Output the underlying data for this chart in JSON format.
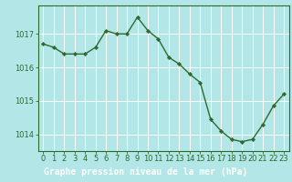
{
  "x": [
    0,
    1,
    2,
    3,
    4,
    5,
    6,
    7,
    8,
    9,
    10,
    11,
    12,
    13,
    14,
    15,
    16,
    17,
    18,
    19,
    20,
    21,
    22,
    23
  ],
  "y": [
    1016.7,
    1016.6,
    1016.4,
    1016.4,
    1016.4,
    1016.6,
    1017.1,
    1017.0,
    1017.0,
    1017.5,
    1017.1,
    1016.85,
    1016.3,
    1016.1,
    1015.8,
    1015.55,
    1014.45,
    1014.1,
    1013.85,
    1013.78,
    1013.85,
    1014.3,
    1014.85,
    1015.2
  ],
  "line_color": "#2d6a2d",
  "marker_color": "#2d6a2d",
  "bg_color": "#b3e6e6",
  "grid_color": "#ffffff",
  "bottom_bar_color": "#2d6a2d",
  "bottom_text_color": "#ffffff",
  "xlabel": "Graphe pression niveau de la mer (hPa)",
  "xlim": [
    -0.5,
    23.5
  ],
  "ylim": [
    1013.5,
    1017.85
  ],
  "yticks": [
    1014,
    1015,
    1016,
    1017
  ],
  "xticks": [
    0,
    1,
    2,
    3,
    4,
    5,
    6,
    7,
    8,
    9,
    10,
    11,
    12,
    13,
    14,
    15,
    16,
    17,
    18,
    19,
    20,
    21,
    22,
    23
  ],
  "label_fontsize": 7.0,
  "tick_fontsize": 6.0,
  "ytick_color": "#2d6a2d",
  "xtick_color": "#2d6a2d"
}
